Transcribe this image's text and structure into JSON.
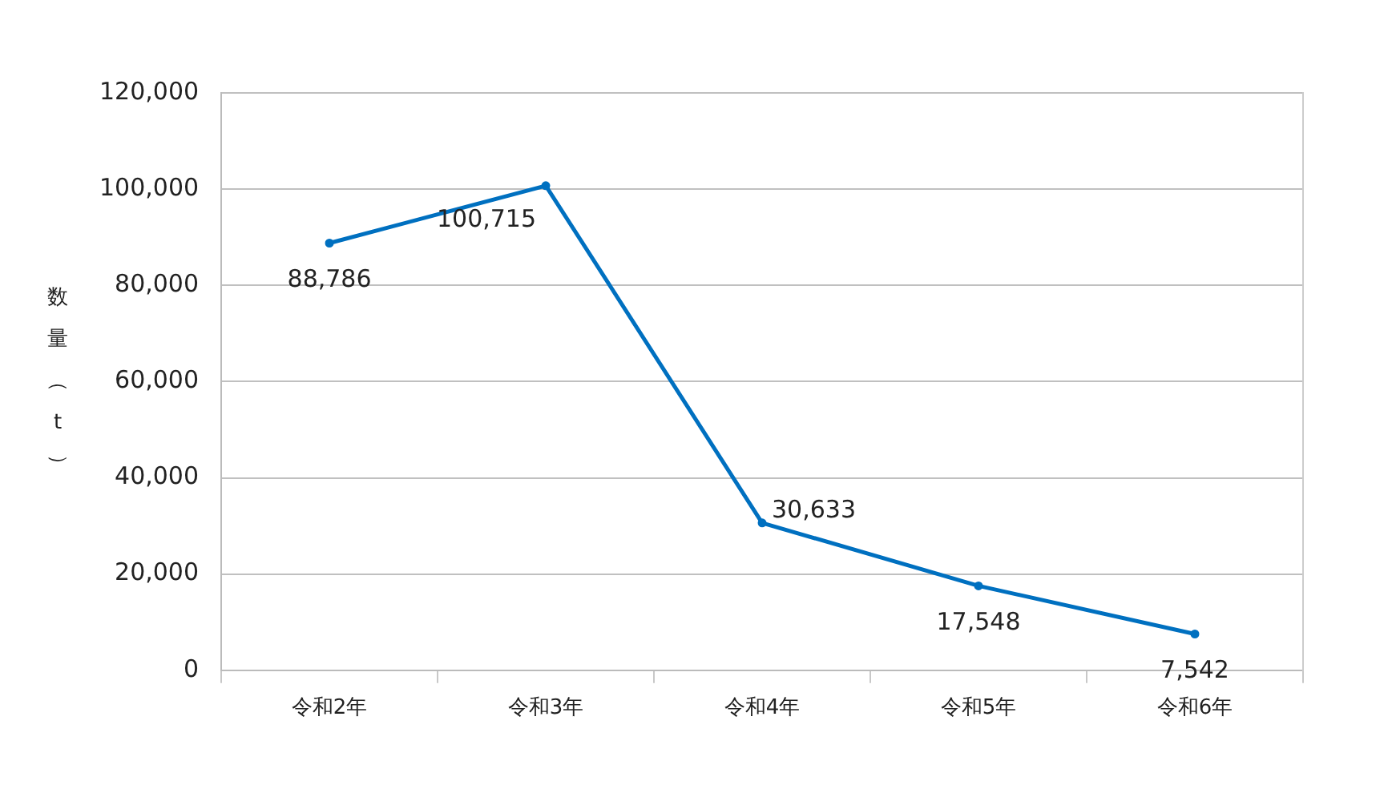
{
  "chart_data": {
    "type": "line",
    "ylabel": "数量（t）",
    "categories": [
      "令和2年",
      "令和3年",
      "令和4年",
      "令和5年",
      "令和6年"
    ],
    "series": [
      {
        "color": "#0070c0",
        "values": [
          88786,
          100715,
          30633,
          17548,
          7542
        ],
        "value_labels": [
          "88,786",
          "100,715",
          "30,633",
          "17,548",
          "7,542"
        ]
      }
    ],
    "ylim": [
      0,
      120000
    ],
    "yticks": [
      0,
      {
        "value": 20000,
        "label": "20,000"
      },
      {
        "value": 40000,
        "label": "40,000"
      },
      {
        "value": 60000,
        "label": "60,000"
      },
      {
        "value": 80000,
        "label": "80,000"
      },
      {
        "value": 100000,
        "label": "100,000"
      },
      {
        "value": 120000,
        "label": "120,000"
      }
    ],
    "grid": "y",
    "legend": false,
    "marker": "circle",
    "line_style": "solid"
  }
}
